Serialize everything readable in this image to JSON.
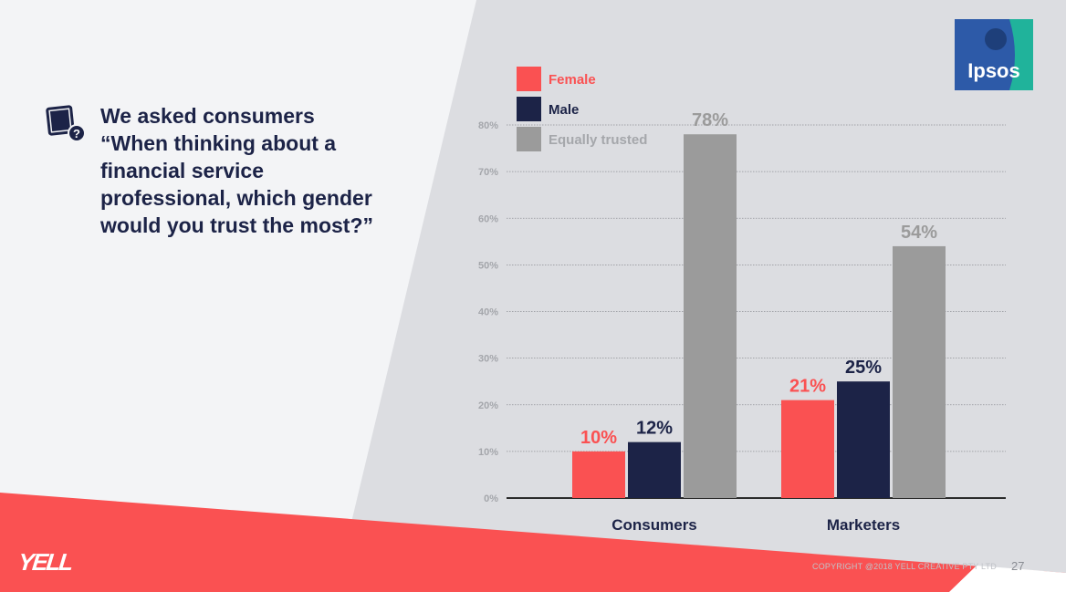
{
  "question": {
    "lines": [
      "We asked consumers",
      "“When thinking about a",
      "financial service",
      "professional, which gender",
      "would you trust the most?”"
    ]
  },
  "logo": {
    "text": "Ipsos"
  },
  "footer": {
    "brand": "YELL",
    "copyright": "COPYRIGHT @2018 YELL CREATIVE PTY LTD",
    "page": "27"
  },
  "colors": {
    "female": "#fa5152",
    "male": "#1c2347",
    "equal": "#9b9b9b",
    "background_right": "#dcdde1",
    "background_left": "#f3f4f6",
    "accent_red": "#fa5152"
  },
  "chart_data": {
    "type": "bar",
    "title": "",
    "xlabel": "",
    "ylabel": "",
    "categories": [
      "Consumers",
      "Marketers"
    ],
    "series": [
      {
        "name": "Female",
        "key": "female",
        "values": [
          10,
          21
        ],
        "labels": [
          "10%",
          "21%"
        ]
      },
      {
        "name": "Male",
        "key": "male",
        "values": [
          12,
          25
        ],
        "labels": [
          "12%",
          "25%"
        ]
      },
      {
        "name": "Equally trusted",
        "key": "equal",
        "values": [
          78,
          54
        ],
        "labels": [
          "78%",
          "54%"
        ]
      }
    ],
    "ylim": [
      0,
      80
    ],
    "yticks": [
      0,
      10,
      20,
      30,
      40,
      50,
      60,
      70,
      80
    ],
    "ytick_labels": [
      "0%",
      "10%",
      "20%",
      "30%",
      "40%",
      "50%",
      "60%",
      "70%",
      "80%"
    ],
    "grid": true,
    "legend": "top-left"
  }
}
